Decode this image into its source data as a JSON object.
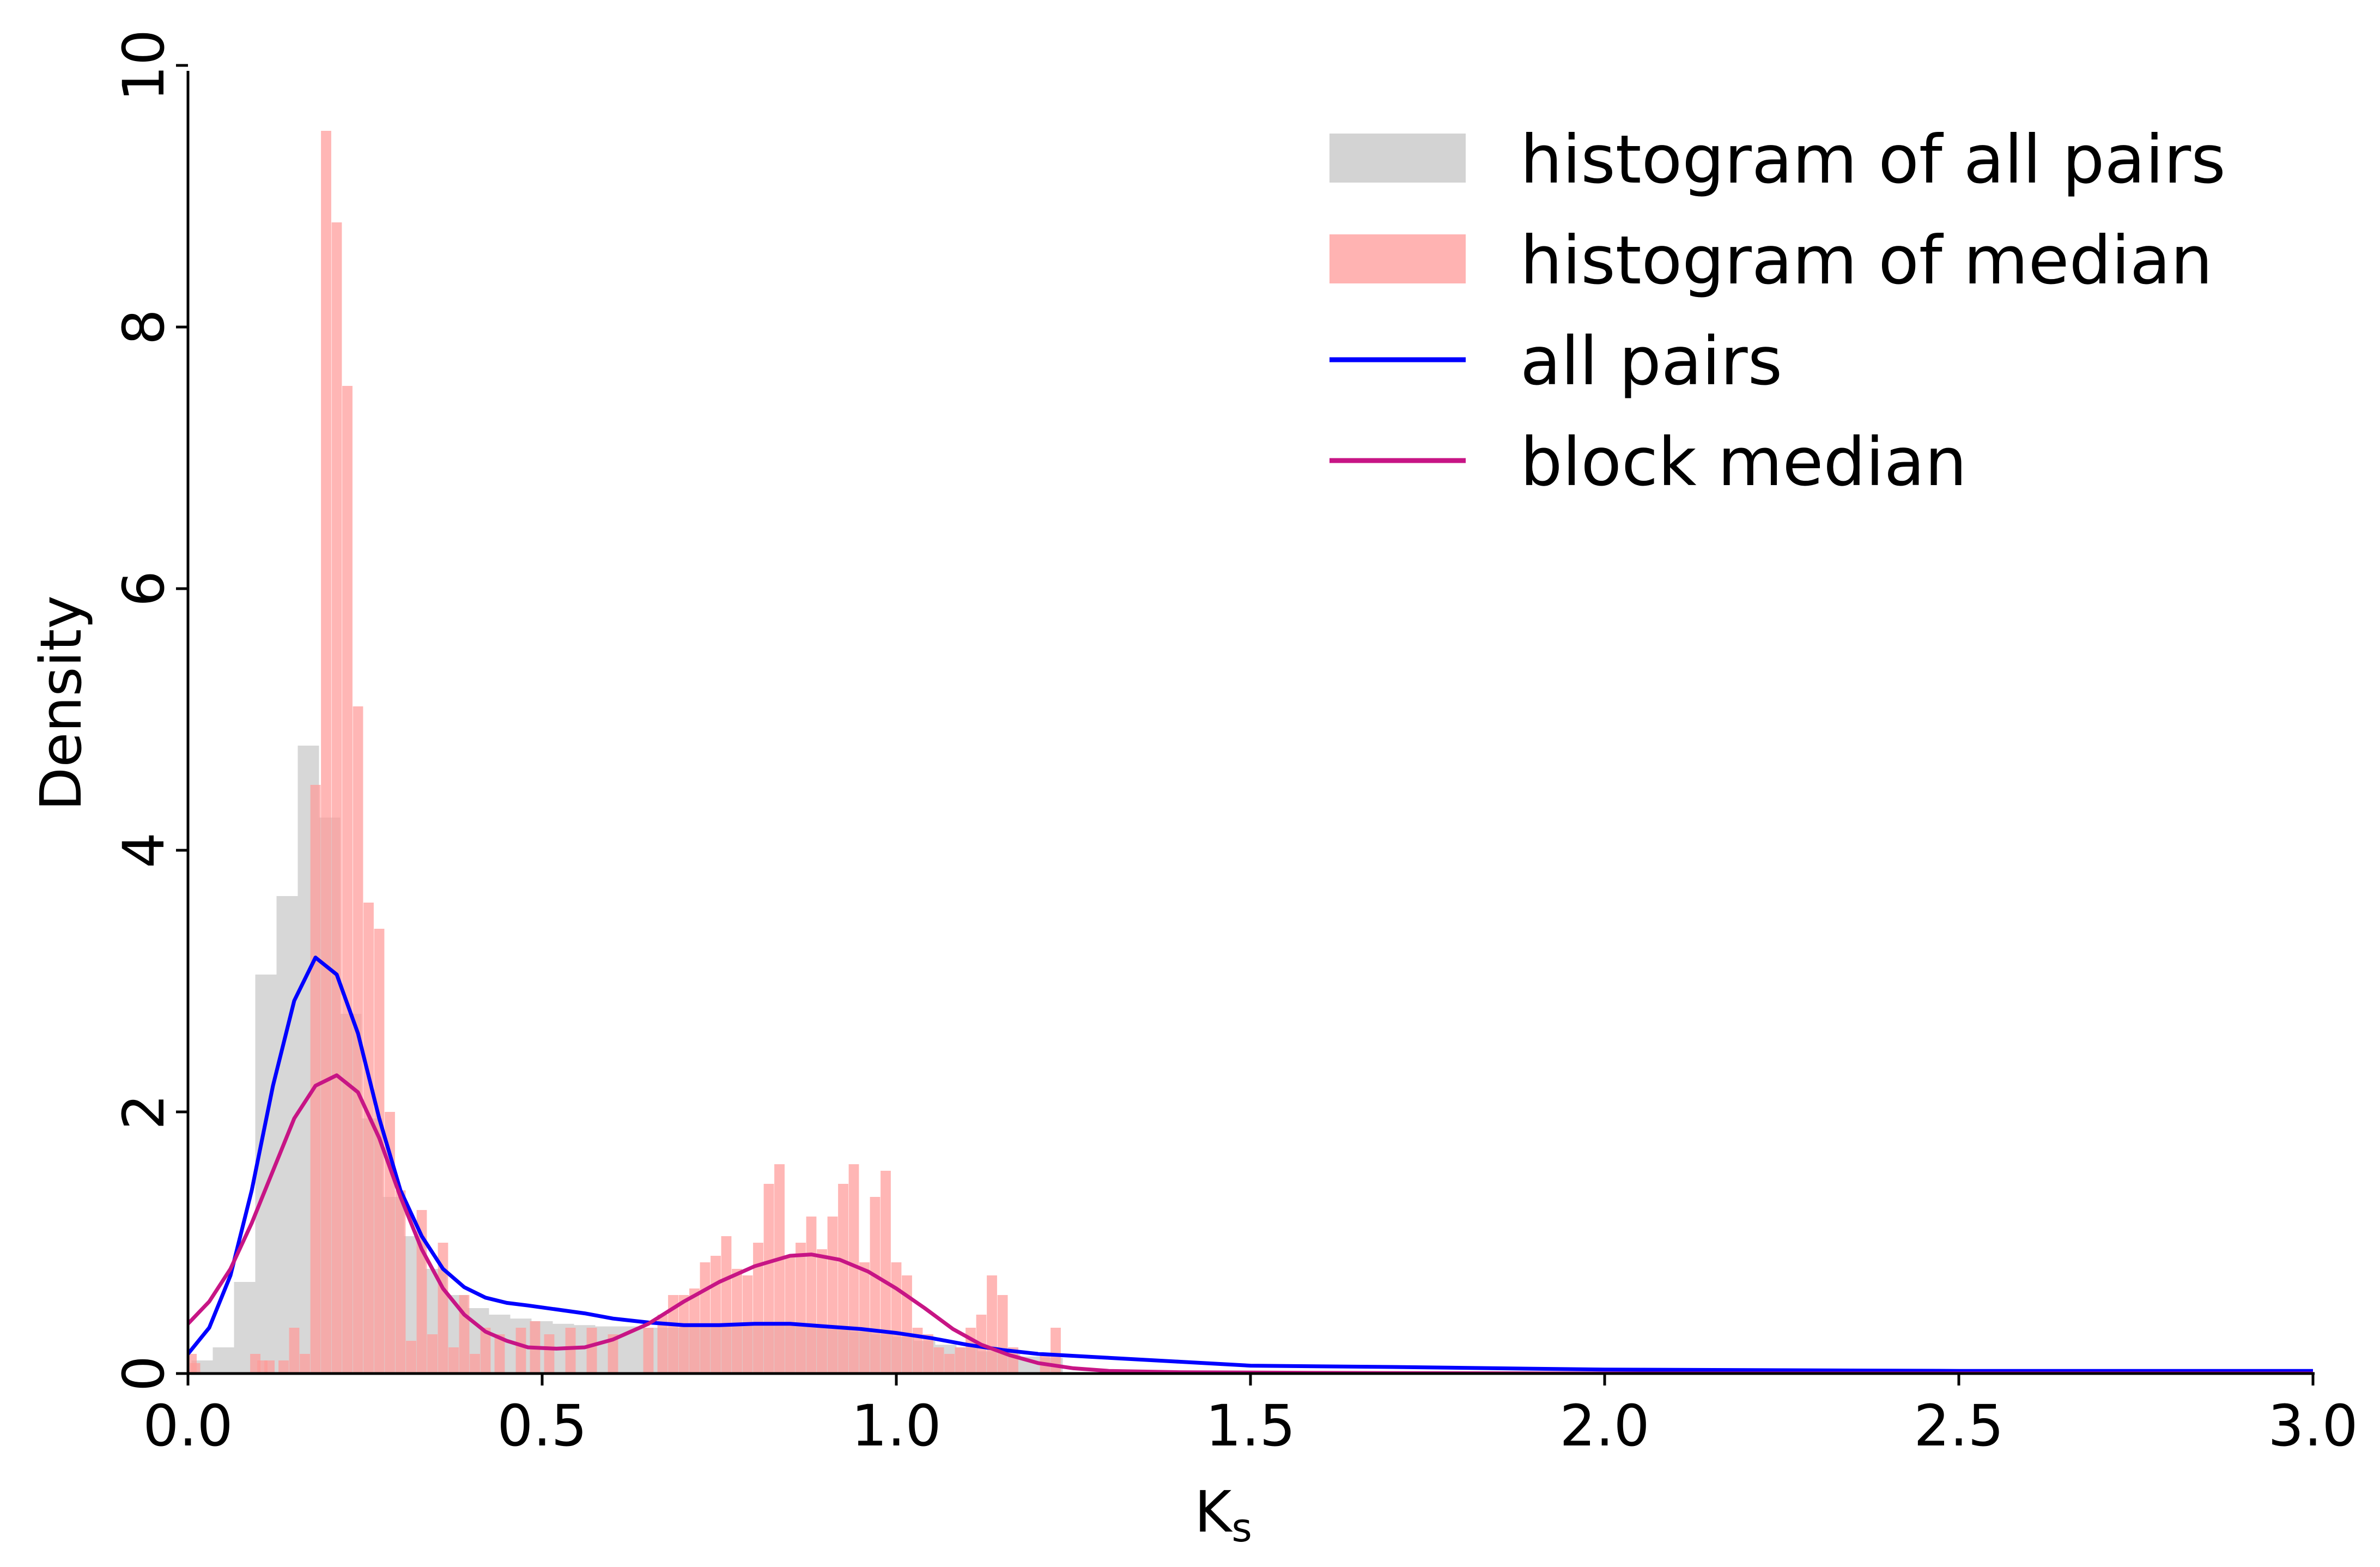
{
  "chart_data": {
    "type": "histogram",
    "xlabel_main": "K",
    "xlabel_sub": "s",
    "ylabel": "Density",
    "xlim": [
      0,
      3
    ],
    "ylim": [
      0,
      10
    ],
    "x_ticks": [
      {
        "value": 0.0,
        "label": "0.0"
      },
      {
        "value": 0.5,
        "label": "0.5"
      },
      {
        "value": 1.0,
        "label": "1.0"
      },
      {
        "value": 1.5,
        "label": "1.5"
      },
      {
        "value": 2.0,
        "label": "2.0"
      },
      {
        "value": 2.5,
        "label": "2.5"
      },
      {
        "value": 3.0,
        "label": "3.0"
      }
    ],
    "y_ticks": [
      {
        "value": 0,
        "label": "0"
      },
      {
        "value": 2,
        "label": "2"
      },
      {
        "value": 4,
        "label": "4"
      },
      {
        "value": 6,
        "label": "6"
      },
      {
        "value": 8,
        "label": "8"
      },
      {
        "value": 10,
        "label": "10"
      }
    ],
    "legend_position": "top-right",
    "series": [
      {
        "name": "histogram of all pairs",
        "kind": "histogram",
        "color": "#d3d3d3",
        "bin_width": 0.03,
        "bins": [
          [
            0.02,
            0.1
          ],
          [
            0.05,
            0.2
          ],
          [
            0.08,
            0.7
          ],
          [
            0.11,
            3.05
          ],
          [
            0.14,
            3.65
          ],
          [
            0.17,
            4.8
          ],
          [
            0.2,
            4.25
          ],
          [
            0.23,
            2.75
          ],
          [
            0.26,
            1.95
          ],
          [
            0.29,
            1.35
          ],
          [
            0.32,
            1.05
          ],
          [
            0.35,
            0.8
          ],
          [
            0.38,
            0.6
          ],
          [
            0.41,
            0.5
          ],
          [
            0.44,
            0.45
          ],
          [
            0.47,
            0.42
          ],
          [
            0.5,
            0.4
          ],
          [
            0.53,
            0.38
          ],
          [
            0.56,
            0.37
          ],
          [
            0.59,
            0.36
          ],
          [
            0.62,
            0.36
          ],
          [
            0.65,
            0.35
          ],
          [
            0.68,
            0.35
          ],
          [
            0.71,
            0.36
          ],
          [
            0.74,
            0.37
          ],
          [
            0.77,
            0.38
          ],
          [
            0.8,
            0.38
          ],
          [
            0.83,
            0.38
          ],
          [
            0.86,
            0.37
          ],
          [
            0.89,
            0.36
          ],
          [
            0.92,
            0.34
          ],
          [
            0.95,
            0.32
          ],
          [
            0.98,
            0.3
          ],
          [
            1.01,
            0.28
          ],
          [
            1.04,
            0.25
          ],
          [
            1.07,
            0.22
          ],
          [
            1.1,
            0.2
          ],
          [
            1.13,
            0.17
          ],
          [
            1.16,
            0.15
          ],
          [
            1.19,
            0.13
          ],
          [
            1.22,
            0.12
          ]
        ]
      },
      {
        "name": "histogram of median",
        "kind": "histogram",
        "color": "#ff9a98",
        "bin_width": 0.0145,
        "bins": [
          [
            0.005,
            0.15
          ],
          [
            0.01,
            0.08
          ],
          [
            0.095,
            0.15
          ],
          [
            0.105,
            0.1
          ],
          [
            0.115,
            0.1
          ],
          [
            0.135,
            0.1
          ],
          [
            0.15,
            0.35
          ],
          [
            0.165,
            0.15
          ],
          [
            0.18,
            4.5
          ],
          [
            0.195,
            9.5
          ],
          [
            0.21,
            8.8
          ],
          [
            0.225,
            7.55
          ],
          [
            0.24,
            5.1
          ],
          [
            0.255,
            3.6
          ],
          [
            0.27,
            3.4
          ],
          [
            0.285,
            2.0
          ],
          [
            0.3,
            1.4
          ],
          [
            0.315,
            0.25
          ],
          [
            0.33,
            1.25
          ],
          [
            0.345,
            0.3
          ],
          [
            0.36,
            1.0
          ],
          [
            0.375,
            0.2
          ],
          [
            0.39,
            0.6
          ],
          [
            0.405,
            0.15
          ],
          [
            0.42,
            0.35
          ],
          [
            0.44,
            0.3
          ],
          [
            0.47,
            0.35
          ],
          [
            0.49,
            0.4
          ],
          [
            0.51,
            0.3
          ],
          [
            0.54,
            0.35
          ],
          [
            0.57,
            0.35
          ],
          [
            0.6,
            0.3
          ],
          [
            0.65,
            0.35
          ],
          [
            0.67,
            0.45
          ],
          [
            0.685,
            0.6
          ],
          [
            0.7,
            0.6
          ],
          [
            0.715,
            0.65
          ],
          [
            0.73,
            0.85
          ],
          [
            0.745,
            0.9
          ],
          [
            0.76,
            1.05
          ],
          [
            0.775,
            0.8
          ],
          [
            0.79,
            0.75
          ],
          [
            0.805,
            1.0
          ],
          [
            0.82,
            1.45
          ],
          [
            0.835,
            1.6
          ],
          [
            0.85,
            0.9
          ],
          [
            0.865,
            1.0
          ],
          [
            0.88,
            1.2
          ],
          [
            0.895,
            0.95
          ],
          [
            0.91,
            1.2
          ],
          [
            0.925,
            1.45
          ],
          [
            0.94,
            1.6
          ],
          [
            0.955,
            0.85
          ],
          [
            0.97,
            1.35
          ],
          [
            0.985,
            1.55
          ],
          [
            1.0,
            0.85
          ],
          [
            1.015,
            0.75
          ],
          [
            1.03,
            0.35
          ],
          [
            1.045,
            0.3
          ],
          [
            1.06,
            0.2
          ],
          [
            1.075,
            0.15
          ],
          [
            1.09,
            0.2
          ],
          [
            1.105,
            0.35
          ],
          [
            1.12,
            0.45
          ],
          [
            1.135,
            0.75
          ],
          [
            1.15,
            0.6
          ],
          [
            1.165,
            0.2
          ],
          [
            1.21,
            0.15
          ],
          [
            1.225,
            0.35
          ]
        ]
      },
      {
        "name": "all pairs",
        "kind": "line",
        "color": "#0000ff",
        "points": [
          [
            0.0,
            0.15
          ],
          [
            0.03,
            0.35
          ],
          [
            0.06,
            0.75
          ],
          [
            0.09,
            1.4
          ],
          [
            0.12,
            2.2
          ],
          [
            0.15,
            2.85
          ],
          [
            0.18,
            3.18
          ],
          [
            0.21,
            3.05
          ],
          [
            0.24,
            2.6
          ],
          [
            0.27,
            1.95
          ],
          [
            0.3,
            1.4
          ],
          [
            0.33,
            1.05
          ],
          [
            0.36,
            0.8
          ],
          [
            0.39,
            0.66
          ],
          [
            0.42,
            0.58
          ],
          [
            0.45,
            0.54
          ],
          [
            0.48,
            0.52
          ],
          [
            0.52,
            0.49
          ],
          [
            0.56,
            0.46
          ],
          [
            0.6,
            0.42
          ],
          [
            0.65,
            0.39
          ],
          [
            0.7,
            0.37
          ],
          [
            0.75,
            0.37
          ],
          [
            0.8,
            0.38
          ],
          [
            0.85,
            0.38
          ],
          [
            0.9,
            0.36
          ],
          [
            0.95,
            0.34
          ],
          [
            1.0,
            0.31
          ],
          [
            1.05,
            0.27
          ],
          [
            1.1,
            0.22
          ],
          [
            1.15,
            0.18
          ],
          [
            1.2,
            0.15
          ],
          [
            1.3,
            0.12
          ],
          [
            1.4,
            0.09
          ],
          [
            1.5,
            0.06
          ],
          [
            1.7,
            0.05
          ],
          [
            2.0,
            0.03
          ],
          [
            2.5,
            0.02
          ],
          [
            3.0,
            0.02
          ]
        ]
      },
      {
        "name": "block median",
        "kind": "line",
        "color": "#c71585",
        "points": [
          [
            0.0,
            0.38
          ],
          [
            0.03,
            0.55
          ],
          [
            0.06,
            0.8
          ],
          [
            0.09,
            1.15
          ],
          [
            0.12,
            1.55
          ],
          [
            0.15,
            1.95
          ],
          [
            0.18,
            2.2
          ],
          [
            0.21,
            2.28
          ],
          [
            0.24,
            2.15
          ],
          [
            0.27,
            1.8
          ],
          [
            0.3,
            1.35
          ],
          [
            0.33,
            0.95
          ],
          [
            0.36,
            0.65
          ],
          [
            0.39,
            0.45
          ],
          [
            0.42,
            0.32
          ],
          [
            0.45,
            0.25
          ],
          [
            0.48,
            0.2
          ],
          [
            0.52,
            0.19
          ],
          [
            0.56,
            0.2
          ],
          [
            0.6,
            0.26
          ],
          [
            0.65,
            0.38
          ],
          [
            0.7,
            0.55
          ],
          [
            0.75,
            0.7
          ],
          [
            0.8,
            0.82
          ],
          [
            0.85,
            0.9
          ],
          [
            0.88,
            0.91
          ],
          [
            0.92,
            0.87
          ],
          [
            0.96,
            0.78
          ],
          [
            1.0,
            0.65
          ],
          [
            1.04,
            0.5
          ],
          [
            1.08,
            0.34
          ],
          [
            1.12,
            0.22
          ],
          [
            1.16,
            0.14
          ],
          [
            1.2,
            0.08
          ],
          [
            1.25,
            0.04
          ],
          [
            1.3,
            0.02
          ],
          [
            1.4,
            0.01
          ],
          [
            1.6,
            0.005
          ],
          [
            2.0,
            0.0
          ],
          [
            3.0,
            0.0
          ]
        ]
      }
    ]
  }
}
